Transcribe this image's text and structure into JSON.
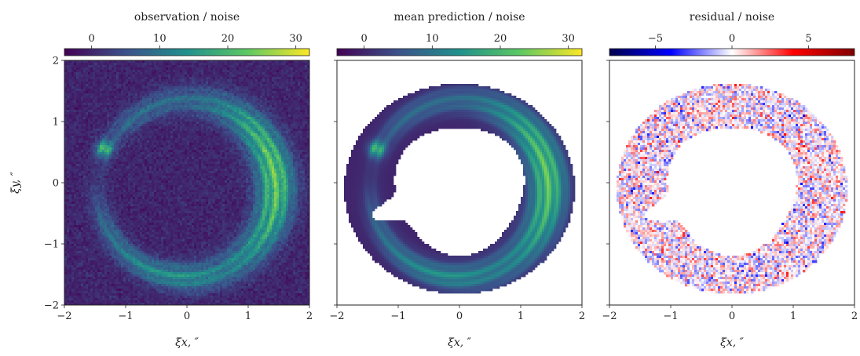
{
  "colors": {
    "background": "#2a2b73",
    "viridis": [
      "#440154",
      "#3b528b",
      "#21918c",
      "#5ec962",
      "#fde725"
    ],
    "seismic": [
      "#00004c",
      "#0000ff",
      "#ffffff",
      "#ff0000",
      "#7f0000"
    ]
  },
  "chart_data": [
    {
      "type": "heatmap",
      "title": "observation / noise",
      "colormap": "viridis",
      "color_range": [
        -4,
        32
      ],
      "colorbar_ticks": [
        0,
        10,
        20,
        30
      ],
      "xlabel": "ξx, ″",
      "ylabel": "ξy, ″",
      "xlim": [
        -2,
        2
      ],
      "ylim": [
        -2,
        2
      ],
      "x_ticks": [
        -2,
        -1,
        0,
        1,
        2
      ],
      "y_ticks": [
        -2,
        -1,
        0,
        1,
        2
      ],
      "feature": "Einstein ring of radius ~1.45″ centered near (0, -0.1); peak ~30 on right side near (1.45, -0.3); clump ~24 at (-1.35, 0.55); background ~0 with noise"
    },
    {
      "type": "heatmap",
      "title": "mean prediction / noise",
      "colormap": "viridis",
      "color_range": [
        -4,
        32
      ],
      "colorbar_ticks": [
        0,
        10,
        20,
        30
      ],
      "xlabel": "ξx, ″",
      "xlim": [
        -2,
        2
      ],
      "ylim": [
        -2,
        2
      ],
      "x_ticks": [
        -2,
        -1,
        0,
        1,
        2
      ],
      "y_ticks": [
        -2,
        -1,
        0,
        1,
        2
      ],
      "feature": "smooth ring model inside a masked annulus; white outside the mask"
    },
    {
      "type": "heatmap",
      "title": "residual / noise",
      "colormap": "seismic",
      "color_range": [
        -8,
        8
      ],
      "colorbar_ticks": [
        -5,
        0,
        5
      ],
      "xlabel": "ξx, ″",
      "xlim": [
        -2,
        2
      ],
      "ylim": [
        -2,
        2
      ],
      "x_ticks": [
        -2,
        -1,
        0,
        1,
        2
      ],
      "y_ticks": [
        -2,
        -1,
        0,
        1,
        2
      ],
      "feature": "noise-like residuals within the masked annulus, mostly |r| < 3"
    }
  ]
}
